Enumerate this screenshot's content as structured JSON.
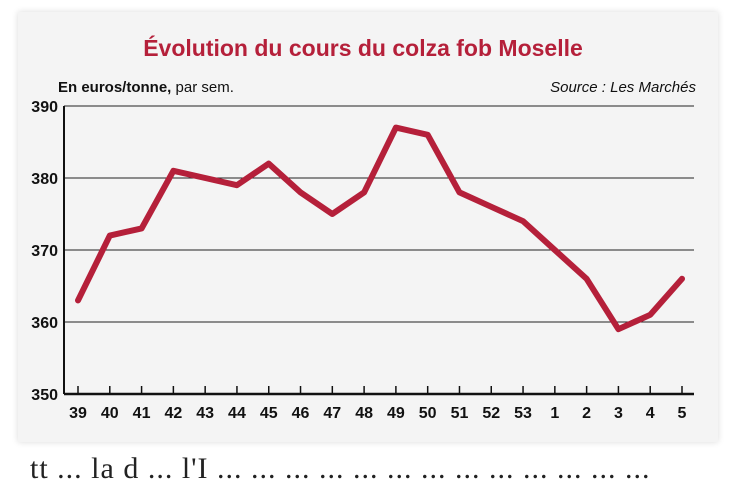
{
  "chart_data": {
    "type": "line",
    "title": "Évolution du cours du colza fob Moselle",
    "ylabel_bold": "En euros/tonne,",
    "ylabel_rest": " par sem.",
    "source": "Source : Les Marchés",
    "categories": [
      "39",
      "40",
      "41",
      "42",
      "43",
      "44",
      "45",
      "46",
      "47",
      "48",
      "49",
      "50",
      "51",
      "52",
      "53",
      "1",
      "2",
      "3",
      "4",
      "5"
    ],
    "values": [
      363,
      372,
      373,
      381,
      380,
      379,
      382,
      378,
      375,
      378,
      387,
      386,
      378,
      376,
      374,
      370,
      366,
      359,
      361,
      366
    ],
    "ylim": [
      350,
      390
    ],
    "yticks": [
      350,
      360,
      370,
      380,
      390
    ],
    "grid": true,
    "color": "#b5203a"
  },
  "footer_text": "tt ... la d ... l'I ... ... ... ... ... ... ... ... ... ... ... ... ..."
}
